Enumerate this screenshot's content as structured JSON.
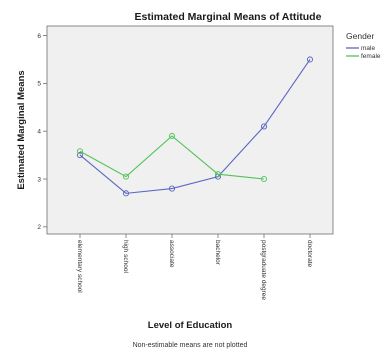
{
  "chart_data": {
    "type": "line",
    "title": "Estimated Marginal Means of Attitude",
    "xlabel": "Level of Education",
    "ylabel": "Estimated Marginal Means",
    "footnote": "Non-estimable means are not plotted",
    "categories": [
      "elementary school",
      "high school",
      "associate",
      "bachelor",
      "postgraduate degree",
      "doctorate"
    ],
    "yticks": [
      2,
      3,
      4,
      5,
      6
    ],
    "ylim": [
      1.85,
      6.2
    ],
    "grid": false,
    "legend": {
      "title": "Gender",
      "placement": "right"
    },
    "series": [
      {
        "name": "male",
        "color": "#5a66c4",
        "values": [
          3.5,
          2.7,
          2.8,
          3.05,
          4.1,
          5.5
        ]
      },
      {
        "name": "female",
        "color": "#52c45a",
        "values": [
          3.58,
          3.05,
          3.9,
          3.1,
          3.0,
          null
        ]
      }
    ]
  }
}
